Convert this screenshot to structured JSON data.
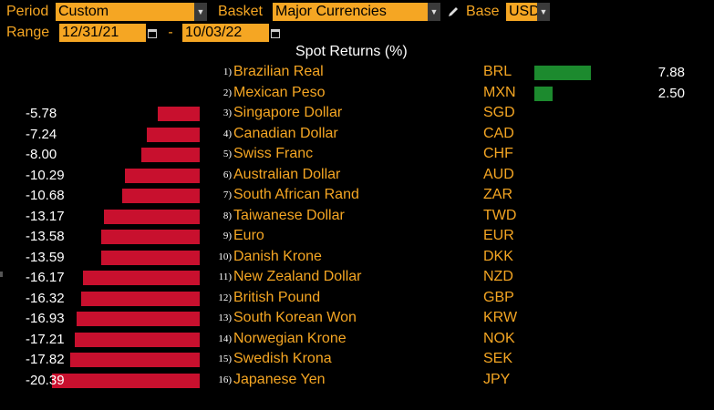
{
  "header": {
    "period_label": "Period",
    "period_value": "Custom",
    "basket_label": "Basket",
    "basket_value": "Major Currencies",
    "base_label": "Base",
    "base_value": "USD",
    "range_label": "Range",
    "range_start": "12/31/21",
    "range_sep": "-",
    "range_end": "10/03/22"
  },
  "chart_data": {
    "type": "bar",
    "title": "Spot Returns (%)",
    "rows": [
      {
        "rank": "1)",
        "name": "Brazilian Real",
        "code": "BRL",
        "value": 7.88,
        "label": "7.88"
      },
      {
        "rank": "2)",
        "name": "Mexican Peso",
        "code": "MXN",
        "value": 2.5,
        "label": "2.50"
      },
      {
        "rank": "3)",
        "name": "Singapore Dollar",
        "code": "SGD",
        "value": -5.78,
        "label": "-5.78"
      },
      {
        "rank": "4)",
        "name": "Canadian Dollar",
        "code": "CAD",
        "value": -7.24,
        "label": "-7.24"
      },
      {
        "rank": "5)",
        "name": "Swiss Franc",
        "code": "CHF",
        "value": -8.0,
        "label": "-8.00"
      },
      {
        "rank": "6)",
        "name": "Australian Dollar",
        "code": "AUD",
        "value": -10.29,
        "label": "-10.29"
      },
      {
        "rank": "7)",
        "name": "South African Rand",
        "code": "ZAR",
        "value": -10.68,
        "label": "-10.68"
      },
      {
        "rank": "8)",
        "name": "Taiwanese Dollar",
        "code": "TWD",
        "value": -13.17,
        "label": "-13.17"
      },
      {
        "rank": "9)",
        "name": "Euro",
        "code": "EUR",
        "value": -13.58,
        "label": "-13.58"
      },
      {
        "rank": "10)",
        "name": "Danish Krone",
        "code": "DKK",
        "value": -13.59,
        "label": "-13.59"
      },
      {
        "rank": "11)",
        "name": "New Zealand Dollar",
        "code": "NZD",
        "value": -16.17,
        "label": "-16.17"
      },
      {
        "rank": "12)",
        "name": "British Pound",
        "code": "GBP",
        "value": -16.32,
        "label": "-16.32"
      },
      {
        "rank": "13)",
        "name": "South Korean Won",
        "code": "KRW",
        "value": -16.93,
        "label": "-16.93"
      },
      {
        "rank": "14)",
        "name": "Norwegian Krone",
        "code": "NOK",
        "value": -17.21,
        "label": "-17.21"
      },
      {
        "rank": "15)",
        "name": "Swedish Krona",
        "code": "SEK",
        "value": -17.82,
        "label": "-17.82"
      },
      {
        "rank": "16)",
        "name": "Japanese Yen",
        "code": "JPY",
        "value": -20.39,
        "label": "-20.39"
      }
    ]
  },
  "colors": {
    "accent": "#f5a623",
    "negative": "#c8102e",
    "positive": "#1c8a2e"
  },
  "icons": {
    "dropdown": "chevron-down-icon",
    "calendar": "calendar-icon",
    "edit": "pencil-icon"
  }
}
